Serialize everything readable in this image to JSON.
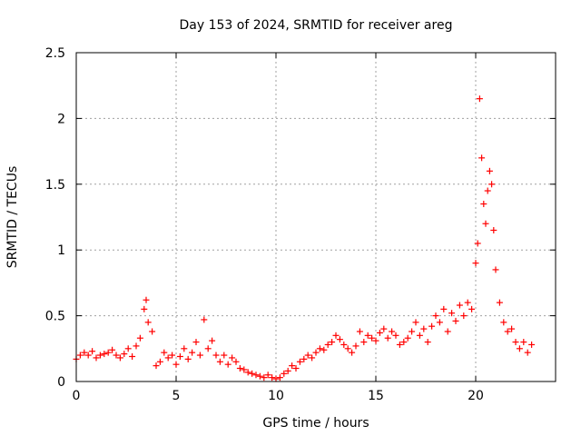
{
  "chart_data": {
    "type": "scatter",
    "title": "Day 153 of 2024, SRMTID for receiver areg",
    "xlabel": "GPS time / hours",
    "ylabel": "SRMTID / TECUs",
    "xlim": [
      0,
      24
    ],
    "ylim": [
      0,
      2.5
    ],
    "xticks": [
      0,
      5,
      10,
      15,
      20
    ],
    "yticks": [
      0,
      0.5,
      1,
      1.5,
      2,
      2.5
    ],
    "xtick_labels": [
      "0",
      "5",
      "10",
      "15",
      "20"
    ],
    "ytick_labels": [
      "0",
      "0.5",
      "1",
      "1.5",
      "2",
      "2.5"
    ],
    "grid": true,
    "marker": "+",
    "color": "#ff0000",
    "series": [
      {
        "name": "SRMTID",
        "x": [
          0.0,
          0.2,
          0.4,
          0.6,
          0.8,
          1.0,
          1.2,
          1.4,
          1.6,
          1.8,
          2.0,
          2.2,
          2.4,
          2.6,
          2.8,
          3.0,
          3.2,
          3.4,
          3.5,
          3.6,
          3.8,
          4.0,
          4.2,
          4.4,
          4.6,
          4.8,
          5.0,
          5.2,
          5.4,
          5.6,
          5.8,
          6.0,
          6.2,
          6.4,
          6.6,
          6.8,
          7.0,
          7.2,
          7.4,
          7.6,
          7.8,
          8.0,
          8.2,
          8.4,
          8.6,
          8.8,
          9.0,
          9.2,
          9.4,
          9.6,
          9.8,
          10.0,
          10.2,
          10.4,
          10.6,
          10.8,
          11.0,
          11.2,
          11.4,
          11.6,
          11.8,
          12.0,
          12.2,
          12.4,
          12.6,
          12.8,
          13.0,
          13.2,
          13.4,
          13.6,
          13.8,
          14.0,
          14.2,
          14.4,
          14.6,
          14.8,
          15.0,
          15.2,
          15.4,
          15.6,
          15.8,
          16.0,
          16.2,
          16.4,
          16.6,
          16.8,
          17.0,
          17.2,
          17.4,
          17.6,
          17.8,
          18.0,
          18.2,
          18.4,
          18.6,
          18.8,
          19.0,
          19.2,
          19.4,
          19.6,
          19.8,
          20.0,
          20.1,
          20.2,
          20.3,
          20.4,
          20.5,
          20.6,
          20.7,
          20.8,
          20.9,
          21.0,
          21.2,
          21.4,
          21.6,
          21.8,
          22.0,
          22.2,
          22.4,
          22.6,
          22.8
        ],
        "y": [
          0.17,
          0.2,
          0.22,
          0.2,
          0.23,
          0.18,
          0.2,
          0.21,
          0.22,
          0.24,
          0.2,
          0.18,
          0.21,
          0.25,
          0.19,
          0.27,
          0.33,
          0.55,
          0.62,
          0.45,
          0.38,
          0.12,
          0.15,
          0.22,
          0.18,
          0.2,
          0.13,
          0.19,
          0.25,
          0.17,
          0.22,
          0.3,
          0.2,
          0.47,
          0.25,
          0.31,
          0.2,
          0.15,
          0.2,
          0.13,
          0.18,
          0.15,
          0.1,
          0.09,
          0.07,
          0.06,
          0.05,
          0.04,
          0.03,
          0.05,
          0.03,
          0.02,
          0.03,
          0.06,
          0.08,
          0.12,
          0.1,
          0.15,
          0.17,
          0.2,
          0.18,
          0.22,
          0.25,
          0.24,
          0.28,
          0.3,
          0.35,
          0.32,
          0.28,
          0.25,
          0.22,
          0.27,
          0.38,
          0.3,
          0.35,
          0.33,
          0.31,
          0.37,
          0.4,
          0.33,
          0.38,
          0.35,
          0.28,
          0.3,
          0.33,
          0.38,
          0.45,
          0.35,
          0.4,
          0.3,
          0.42,
          0.5,
          0.45,
          0.55,
          0.38,
          0.52,
          0.46,
          0.58,
          0.5,
          0.6,
          0.55,
          0.9,
          1.05,
          2.15,
          1.7,
          1.35,
          1.2,
          1.45,
          1.6,
          1.5,
          1.15,
          0.85,
          0.6,
          0.45,
          0.38,
          0.4,
          0.3,
          0.25,
          0.3,
          0.22,
          0.28
        ]
      }
    ]
  }
}
